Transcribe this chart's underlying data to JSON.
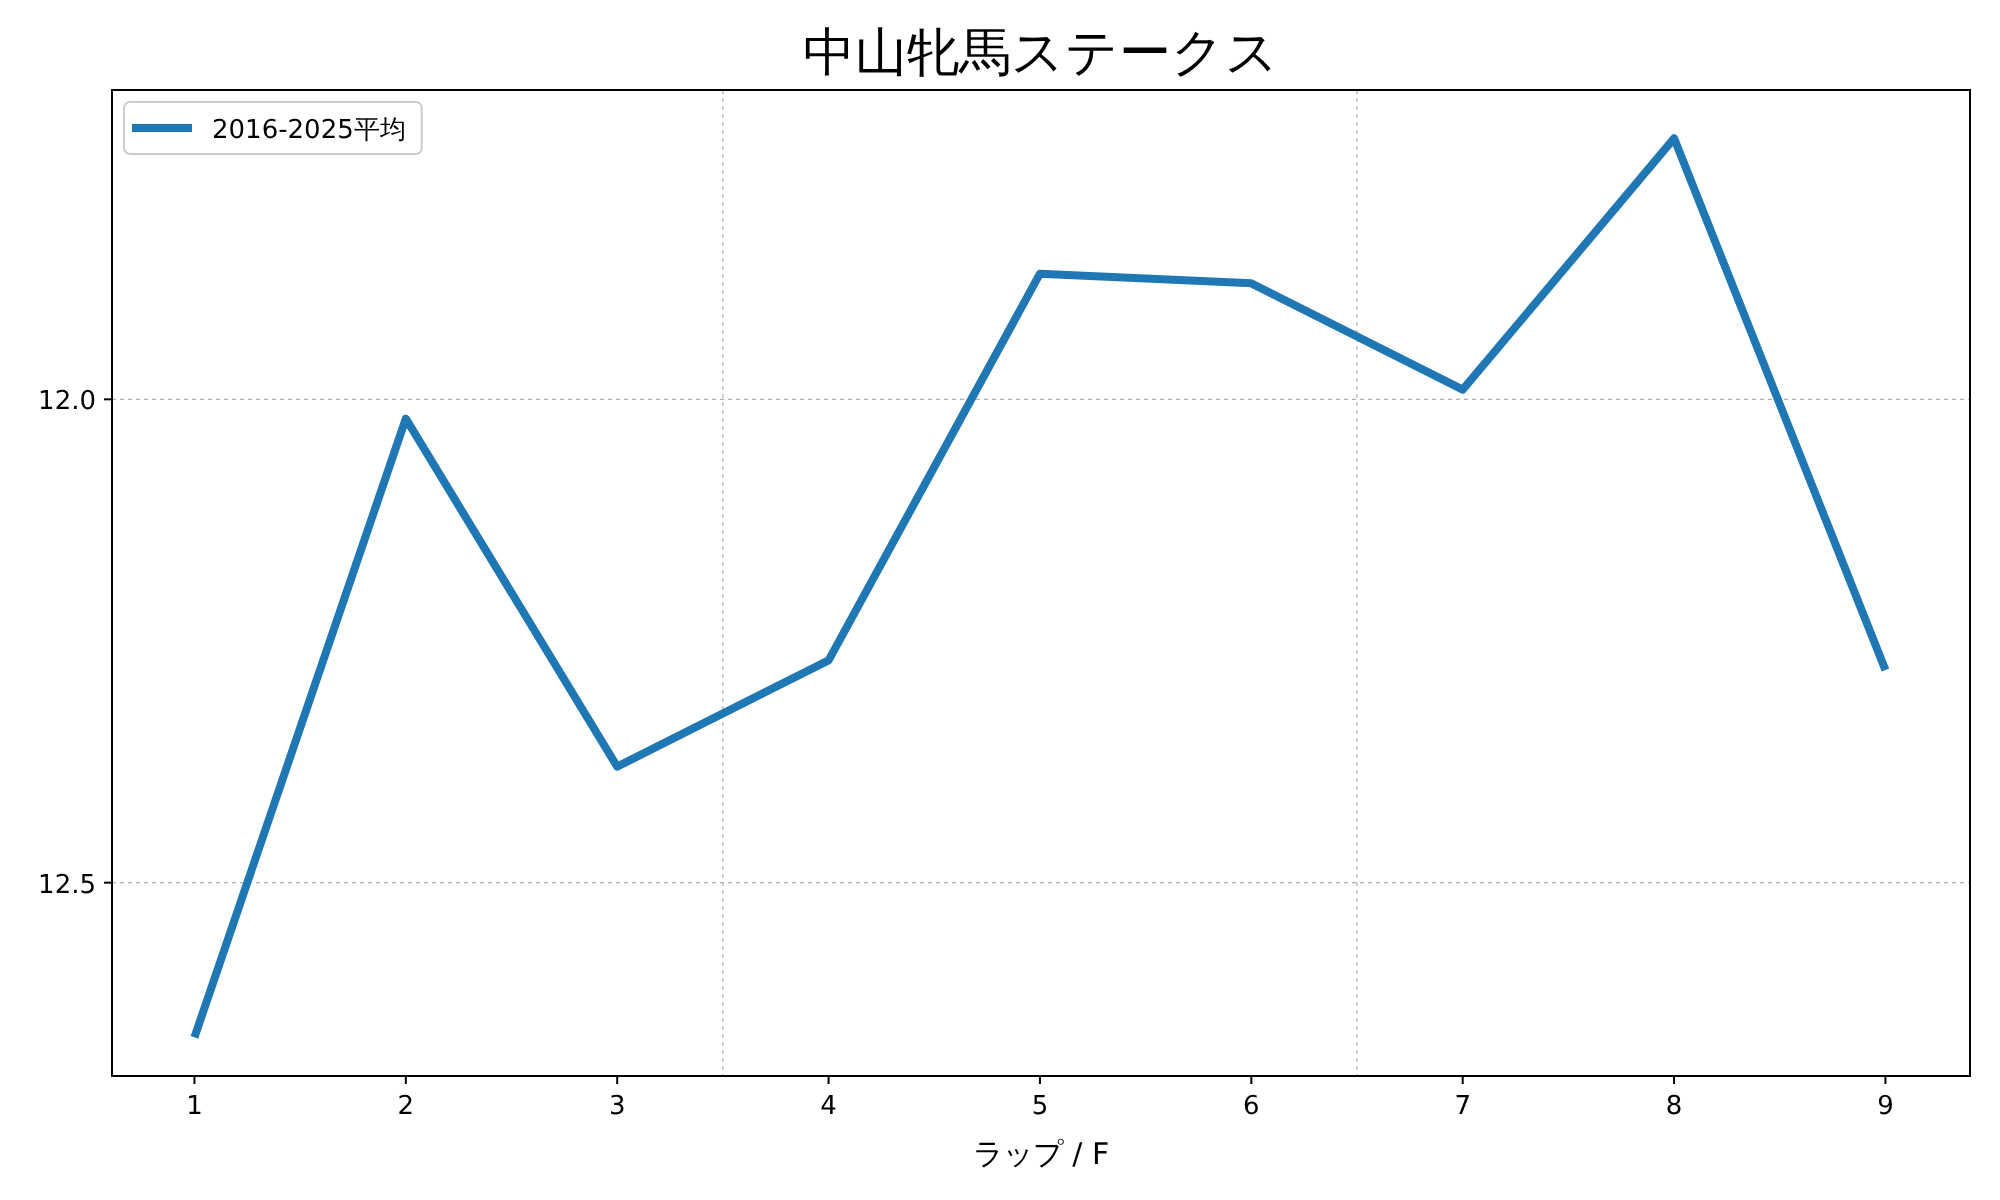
{
  "chart_data": {
    "type": "line",
    "title": "中山牝馬ステークス",
    "xlabel": "ラップ / F",
    "x": [
      1,
      2,
      3,
      4,
      5,
      6,
      7,
      8,
      9
    ],
    "series": [
      {
        "name": "2016-2025平均",
        "color": "#1f77b4",
        "values": [
          12.66,
          12.02,
          12.38,
          12.27,
          11.87,
          11.88,
          11.99,
          11.73,
          12.28
        ]
      }
    ],
    "xlim": [
      0.61,
      9.4
    ],
    "xticks": [
      1,
      2,
      3,
      4,
      5,
      6,
      7,
      8,
      9
    ],
    "ylim": [
      12.7,
      11.68
    ],
    "yticks": [
      {
        "value": 12,
        "label": "12.0"
      },
      12.5
    ],
    "grid": "y",
    "legend": "top left",
    "marker": "none",
    "line_style": "solid",
    "ref_lines": [
      {
        "axis": "x",
        "value": 3.5,
        "color": "#b0b0b0",
        "line_style": "dotted"
      },
      {
        "axis": "x",
        "value": 6.5,
        "color": "#b0b0b0",
        "line_style": "dotted"
      }
    ]
  }
}
